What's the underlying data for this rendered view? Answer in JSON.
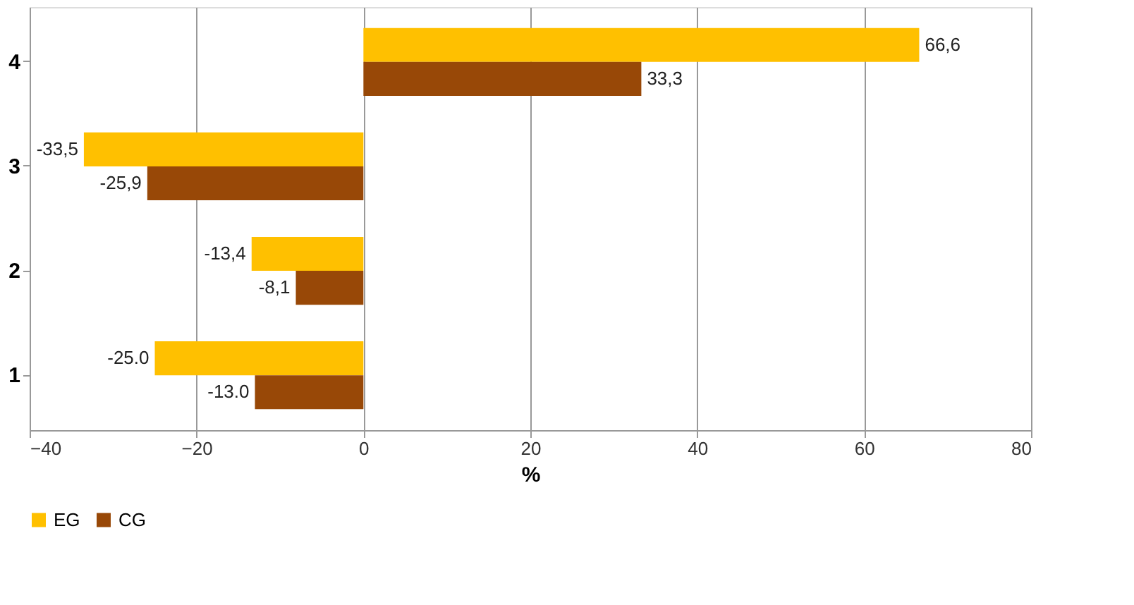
{
  "chart_data": {
    "type": "bar",
    "orientation": "horizontal",
    "xlabel": "%",
    "categories": [
      "4",
      "3",
      "2",
      "1"
    ],
    "series": [
      {
        "name": "EG",
        "color": "#ffc000",
        "values": [
          66.6,
          -33.5,
          -13.4,
          -25.0
        ],
        "value_labels": [
          "66,6",
          "-33,5",
          "-13,4",
          "-25.0"
        ]
      },
      {
        "name": "CG",
        "color": "#984807",
        "values": [
          33.3,
          -25.9,
          -8.1,
          -13.0
        ],
        "value_labels": [
          "33,3",
          "-25,9",
          "-8,1",
          "-13.0"
        ]
      }
    ],
    "xlim": [
      -40,
      80
    ],
    "xticks": [
      -40,
      -20,
      0,
      20,
      40,
      60,
      80
    ],
    "grid": "x",
    "legend": "bottom"
  }
}
